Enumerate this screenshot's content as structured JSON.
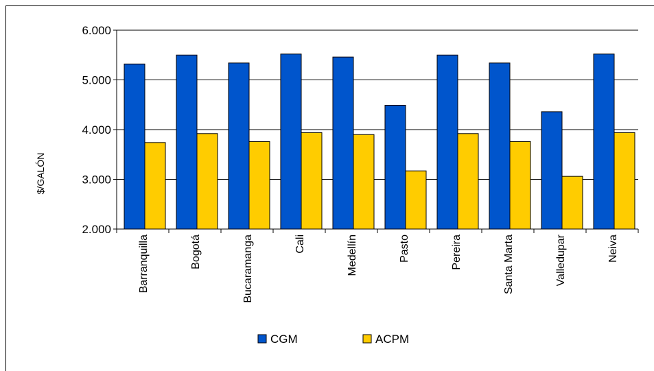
{
  "chart_data": {
    "type": "bar",
    "title": "",
    "xlabel": "",
    "ylabel": "$/GALÓN",
    "ylim": [
      2000,
      6000
    ],
    "yticks": [
      2000,
      3000,
      4000,
      5000,
      6000
    ],
    "ytick_labels": [
      "2.000",
      "3.000",
      "4.000",
      "5.000",
      "6.000"
    ],
    "grid": true,
    "legend_position": "bottom",
    "categories": [
      "Barranquilla",
      "Bogotá",
      "Bucaramanga",
      "Cali",
      "Medellín",
      "Pasto",
      "Pereira",
      "Santa Marta",
      "Valledupar",
      "Neiva"
    ],
    "series": [
      {
        "name": "CGM",
        "color": "#0055CC",
        "values": [
          5320,
          5500,
          5340,
          5520,
          5460,
          4490,
          5500,
          5340,
          4360,
          5520
        ]
      },
      {
        "name": "ACPM",
        "color": "#FFCC00",
        "values": [
          3740,
          3920,
          3760,
          3940,
          3900,
          3170,
          3920,
          3760,
          3060,
          3940
        ]
      }
    ]
  }
}
